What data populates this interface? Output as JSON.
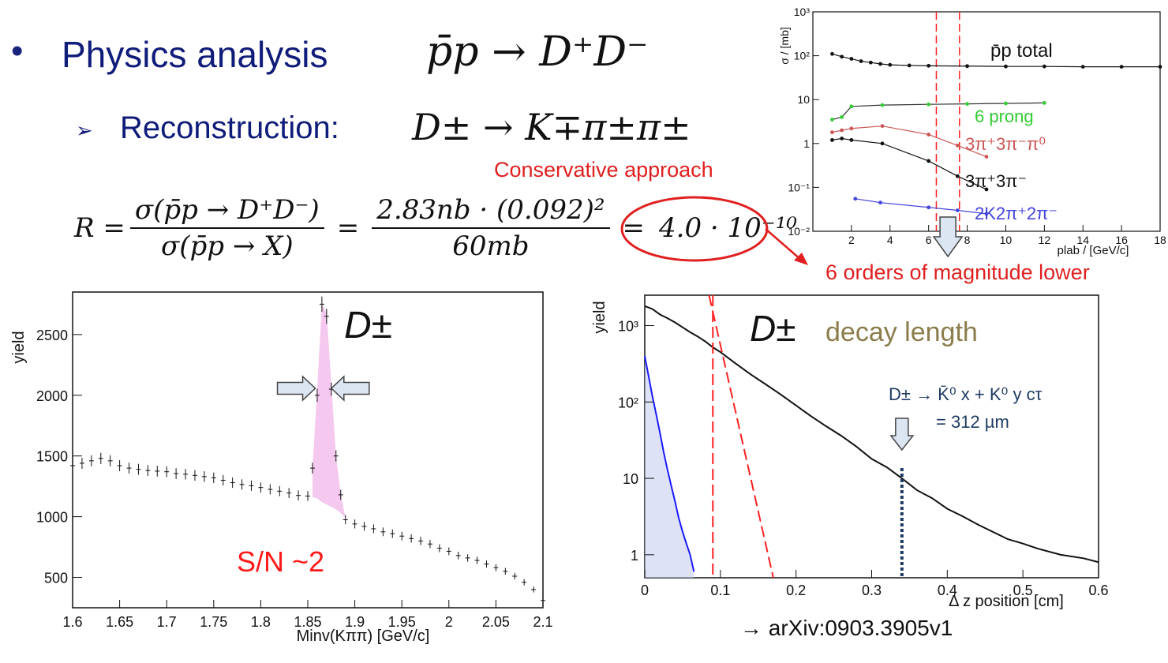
{
  "slide": {
    "bullet": "•",
    "title": "Physics analysis",
    "title_equation": "p̄p → D⁺D⁻",
    "sub_marker": "➢",
    "subtitle": "Reconstruction:",
    "sub_equation": "D± → K∓π±π±",
    "annotation_conservative": "Conservative approach",
    "annotation_orders": "6 orders of magnitude lower",
    "reference": "→ arXiv:0903.3905v1",
    "ratio": {
      "lhs": "R =",
      "num1": "σ(p̄p → D⁺D⁻)",
      "den1": "σ(p̄p → X)",
      "eq": "=",
      "num2": "2.83nb · (0.092)²",
      "den2": "60mb",
      "eq2": "=",
      "result": "4.0 · 10⁻¹⁰"
    },
    "colors": {
      "accent_red": "#e02020",
      "title_blue": "#101c7a",
      "signal_fill": "#f5c8f0"
    }
  },
  "chart_data": [
    {
      "type": "scatter",
      "label": "D±",
      "annotation": "S/N ~2",
      "xlabel": "Minv(Kππ) [GeV/c]",
      "ylabel": "yield",
      "xlim": [
        1.6,
        2.1
      ],
      "ylim": [
        250,
        2850
      ],
      "xticks": [
        "1.6",
        "1.65",
        "1.7",
        "1.75",
        "1.8",
        "1.85",
        "1.9",
        "1.95",
        "2",
        "2.05",
        "2.1"
      ],
      "yticks": [
        "500",
        "1000",
        "1500",
        "2000",
        "2500"
      ],
      "x": [
        1.6,
        1.61,
        1.62,
        1.63,
        1.64,
        1.65,
        1.66,
        1.67,
        1.68,
        1.69,
        1.7,
        1.71,
        1.72,
        1.73,
        1.74,
        1.75,
        1.76,
        1.77,
        1.78,
        1.79,
        1.8,
        1.81,
        1.82,
        1.83,
        1.84,
        1.85,
        1.855,
        1.86,
        1.865,
        1.87,
        1.875,
        1.88,
        1.885,
        1.89,
        1.9,
        1.91,
        1.92,
        1.93,
        1.94,
        1.95,
        1.96,
        1.97,
        1.98,
        1.99,
        2.0,
        2.01,
        2.02,
        2.03,
        2.04,
        2.05,
        2.06,
        2.07,
        2.08,
        2.09,
        2.1
      ],
      "y": [
        1420,
        1440,
        1460,
        1480,
        1460,
        1420,
        1400,
        1390,
        1380,
        1375,
        1370,
        1355,
        1350,
        1340,
        1330,
        1320,
        1300,
        1280,
        1265,
        1255,
        1240,
        1225,
        1210,
        1195,
        1175,
        1170,
        1400,
        2000,
        2750,
        2650,
        2050,
        1500,
        1180,
        975,
        940,
        920,
        900,
        875,
        860,
        840,
        820,
        800,
        775,
        740,
        715,
        680,
        660,
        640,
        610,
        580,
        550,
        510,
        460,
        400,
        310
      ],
      "signal_band": {
        "x": [
          1.855,
          1.86,
          1.865,
          1.87,
          1.875,
          1.88,
          1.885,
          1.89
        ],
        "upper": [
          1400,
          2050,
          2750,
          2680,
          2100,
          1500,
          1190,
          990
        ],
        "lower": [
          1160,
          1150,
          1120,
          1100,
          1080,
          1060,
          1030,
          990
        ]
      }
    },
    {
      "type": "line",
      "log_y": true,
      "label": "D±",
      "title": "decay length",
      "xlabel": "Δ z position  [cm]",
      "ylabel": "yield",
      "xlim": [
        0,
        0.6
      ],
      "ylim": [
        0.5,
        2500
      ],
      "xticks": [
        "0",
        "0.1",
        "0.2",
        "0.3",
        "0.4",
        "0.5",
        "0.6"
      ],
      "yticks": [
        "1",
        "10",
        "10²",
        "10³"
      ],
      "annotation_line1": "D± →  K̄⁰ x + K⁰ y  cτ",
      "annotation_line2": "= 312 µm",
      "marker_x": 0.34,
      "series": [
        {
          "name": "",
          "color": "#111111",
          "x": [
            0,
            0.01,
            0.02,
            0.03,
            0.04,
            0.05,
            0.06,
            0.07,
            0.08,
            0.09,
            0.1,
            0.12,
            0.14,
            0.16,
            0.18,
            0.2,
            0.22,
            0.24,
            0.26,
            0.28,
            0.3,
            0.32,
            0.34,
            0.36,
            0.38,
            0.4,
            0.42,
            0.44,
            0.46,
            0.48,
            0.5,
            0.52,
            0.55,
            0.58,
            0.6
          ],
          "y": [
            1800,
            1650,
            1400,
            1250,
            1100,
            950,
            820,
            720,
            620,
            520,
            450,
            320,
            230,
            170,
            125,
            90,
            65,
            48,
            36,
            26,
            18,
            14,
            10,
            7,
            5.5,
            4,
            3.2,
            2.5,
            2,
            1.6,
            1.4,
            1.2,
            1,
            0.9,
            0.8
          ]
        },
        {
          "name": "",
          "color": "#1a1aff",
          "x": [
            0,
            0.005,
            0.01,
            0.015,
            0.02,
            0.025,
            0.03,
            0.035,
            0.04,
            0.045,
            0.05,
            0.055,
            0.06,
            0.065
          ],
          "y": [
            400,
            220,
            120,
            70,
            40,
            22,
            13,
            8,
            5,
            3,
            2,
            1.4,
            1,
            0.6
          ]
        },
        {
          "name": "",
          "color": "#ff2020",
          "dashed": true,
          "x": [
            0.085,
            0.17
          ],
          "y": [
            2500,
            0.5
          ]
        },
        {
          "name": "",
          "color": "#ff2020",
          "dashed": true,
          "x": [
            0.09,
            0.09
          ],
          "y": [
            2500,
            0.5
          ]
        }
      ]
    },
    {
      "type": "line",
      "log_y": true,
      "ylabel": "σ / [mb]",
      "xlabel": "plab / [GeV/c]",
      "xlim": [
        0,
        18
      ],
      "ylim": [
        0.01,
        1000
      ],
      "xticks": [
        "2",
        "4",
        "6",
        "8",
        "10",
        "12",
        "14",
        "16",
        "18"
      ],
      "yticks": [
        "10⁻²",
        "10⁻¹",
        "1",
        "10",
        "10²",
        "10³"
      ],
      "vlines": [
        6.4,
        7.6
      ],
      "series": [
        {
          "name": "p̄p total",
          "color": "#111111",
          "x": [
            1,
            1.5,
            2,
            2.5,
            3,
            3.5,
            4,
            5,
            6,
            8,
            10,
            12,
            14,
            16,
            18
          ],
          "y": [
            110,
            95,
            85,
            75,
            70,
            65,
            62,
            60,
            59,
            58,
            57,
            57,
            56,
            56,
            56
          ]
        },
        {
          "name": "6 prong",
          "color": "#33cc33",
          "x": [
            1,
            1.5,
            2,
            3.6,
            6,
            8,
            10,
            12
          ],
          "y": [
            3.5,
            4,
            7,
            7.5,
            7.8,
            8,
            8.2,
            8.4
          ]
        },
        {
          "name": "3π⁺3π⁻π⁰",
          "color": "#cc5555",
          "x": [
            1,
            1.5,
            2,
            3.6,
            6,
            7.5,
            9
          ],
          "y": [
            1.8,
            2,
            2.2,
            2.5,
            1.6,
            0.9,
            0.5
          ]
        },
        {
          "name": "3π⁺3π⁻",
          "color": "#111111",
          "x": [
            1,
            1.5,
            2,
            3.6,
            6,
            7.5,
            9
          ],
          "y": [
            1.2,
            1.3,
            1.2,
            1,
            0.4,
            0.18,
            0.09
          ]
        },
        {
          "name": "2K2π⁺2π⁻",
          "color": "#4444dd",
          "x": [
            2.2,
            3.5,
            6,
            7.5,
            9
          ],
          "y": [
            0.055,
            0.045,
            0.035,
            0.03,
            0.025
          ]
        }
      ]
    }
  ]
}
